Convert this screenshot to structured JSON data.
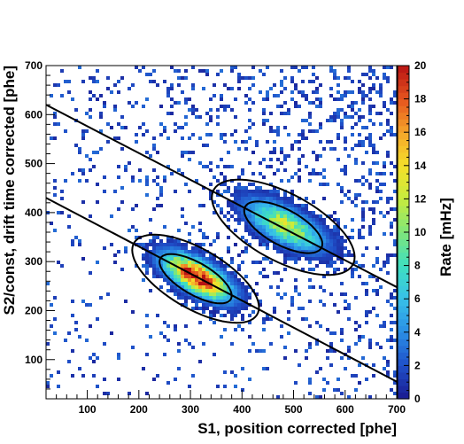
{
  "chart_data": {
    "type": "heatmap",
    "title": "",
    "xlabel": "S1, position corrected [phe]",
    "ylabel": "S2/const, drift time corrected [phe]",
    "colorbar_label": "Rate [mHz]",
    "xlim": [
      20,
      700
    ],
    "ylim": [
      20,
      700
    ],
    "zlim": [
      0,
      20
    ],
    "x_ticks": [
      100,
      200,
      300,
      400,
      500,
      600,
      700
    ],
    "y_ticks": [
      100,
      200,
      300,
      400,
      500,
      600,
      700
    ],
    "z_ticks": [
      0,
      2,
      4,
      6,
      8,
      10,
      12,
      14,
      16,
      18,
      20
    ],
    "palette": [
      "#1a1a90",
      "#1f4fc8",
      "#2a8ee6",
      "#37c0e8",
      "#3fdfc0",
      "#7fe67a",
      "#c6ec3e",
      "#f5e02a",
      "#f5a52a",
      "#e5541e",
      "#b81414"
    ],
    "clusters": [
      {
        "center": [
          310,
          265
        ],
        "sigma_major": 95,
        "sigma_minor": 40,
        "angle_deg": -32,
        "peak_rate": 20
      },
      {
        "center": [
          480,
          370
        ],
        "sigma_major": 110,
        "sigma_minor": 45,
        "angle_deg": -30,
        "peak_rate": 12
      }
    ],
    "ellipses": [
      {
        "center": [
          310,
          265
        ],
        "semi_major": 80,
        "semi_minor": 32,
        "angle_deg": -32
      },
      {
        "center": [
          310,
          265
        ],
        "semi_major": 140,
        "semi_minor": 60,
        "angle_deg": -32
      },
      {
        "center": [
          480,
          370
        ],
        "semi_major": 85,
        "semi_minor": 36,
        "angle_deg": -30
      },
      {
        "center": [
          480,
          370
        ],
        "semi_major": 155,
        "semi_minor": 68,
        "angle_deg": -30
      }
    ],
    "lines": [
      {
        "x": [
          20,
          700
        ],
        "y": [
          620,
          248
        ]
      },
      {
        "x": [
          20,
          700
        ],
        "y": [
          430,
          55
        ]
      }
    ]
  }
}
